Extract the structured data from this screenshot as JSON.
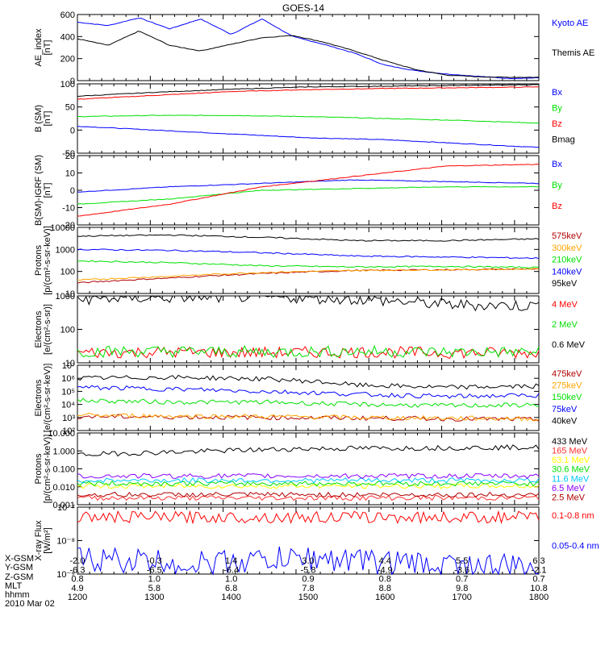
{
  "title": "GOES-14",
  "colors": {
    "blue": "#0000ff",
    "black": "#000000",
    "red": "#ff0000",
    "green": "#00e000",
    "orange": "#ffa500",
    "yellow": "#ffff00",
    "cyan": "#00c8ff",
    "purple": "#8800ff",
    "darkred": "#b00000",
    "midred": "#ff3030"
  },
  "footer": {
    "row_labels": [
      "X-GSM",
      "Y-GSM",
      "Z-GSM",
      "MLT",
      "hhmm",
      "2010 Mar 02"
    ],
    "columns": [
      [
        "-2.0",
        "-6.3",
        "0.8",
        "4.9",
        "1200"
      ],
      [
        "-0.3",
        "-6.5",
        "1.0",
        "5.8",
        "1300"
      ],
      [
        "1.4",
        "-6.4",
        "1.0",
        "6.8",
        "1400"
      ],
      [
        "3.0",
        "-5.8",
        "0.9",
        "7.8",
        "1500"
      ],
      [
        "4.4",
        "-4.9",
        "0.8",
        "8.8",
        "1600"
      ],
      [
        "5.5",
        "-3.6",
        "0.7",
        "9.8",
        "1700"
      ],
      [
        "6.3",
        "-2.1",
        "0.7",
        "10.8",
        "1800"
      ]
    ]
  },
  "chart_data": [
    {
      "type": "line",
      "scale": "linear",
      "ylabel": [
        "AE_index",
        "[nT]"
      ],
      "yticks": [
        "600",
        "400",
        "200",
        "0"
      ],
      "ylim": [
        0,
        600
      ],
      "x": {
        "label": "hhmm",
        "ticks": [
          "1200",
          "1300",
          "1400",
          "1500",
          "1600",
          "1700",
          "1800"
        ],
        "range": [
          "12:00",
          "18:20"
        ]
      },
      "series": [
        {
          "name": "Kyoto AE",
          "color": "blue",
          "values": [
            530,
            500,
            570,
            470,
            560,
            420,
            560,
            400,
            330,
            250,
            140,
            90,
            60,
            40,
            20,
            25
          ]
        },
        {
          "name": "Themis AE",
          "color": "black",
          "values": [
            380,
            320,
            450,
            320,
            270,
            330,
            390,
            410,
            350,
            270,
            180,
            100,
            50,
            35,
            30,
            30
          ]
        }
      ]
    },
    {
      "type": "line",
      "scale": "linear",
      "ylabel": [
        "B (SM)",
        "[nT]"
      ],
      "yticks": [
        "100",
        "50",
        "0",
        "-50"
      ],
      "ylim": [
        -60,
        120
      ],
      "series": [
        {
          "name": "Bx",
          "color": "blue",
          "values": [
            10,
            0,
            -10,
            -20,
            -25,
            -35,
            -45
          ]
        },
        {
          "name": "By",
          "color": "green",
          "values": [
            35,
            38,
            38,
            35,
            30,
            25,
            18
          ]
        },
        {
          "name": "Bz",
          "color": "red",
          "values": [
            80,
            90,
            100,
            105,
            108,
            110,
            112
          ]
        },
        {
          "name": "Bmag",
          "color": "black",
          "values": [
            88,
            98,
            106,
            112,
            114,
            116,
            118
          ]
        }
      ]
    },
    {
      "type": "line",
      "scale": "linear",
      "ylabel": [
        "B(SM)-IGRF (SM)",
        "[nT]"
      ],
      "yticks": [
        "20",
        "10",
        "0",
        "-10",
        "-20"
      ],
      "ylim": [
        -20,
        20
      ],
      "series": [
        {
          "name": "Bx",
          "color": "blue",
          "values": [
            -1,
            2,
            4,
            6,
            5,
            4
          ]
        },
        {
          "name": "By",
          "color": "green",
          "values": [
            -8,
            -5,
            0,
            1,
            2,
            2
          ]
        },
        {
          "name": "Bz",
          "color": "red",
          "values": [
            -15,
            -8,
            2,
            8,
            14,
            15
          ]
        }
      ]
    },
    {
      "type": "line",
      "scale": "log",
      "ylabel": [
        "Protons",
        "[p/(cm²-s-sr-keV)]"
      ],
      "yticks": [
        "10000",
        "1000",
        "100",
        "10"
      ],
      "ylim": [
        10,
        10000
      ],
      "series": [
        {
          "name": "575keV",
          "color": "darkred",
          "values": [
            30,
            50,
            80,
            110,
            120,
            130
          ]
        },
        {
          "name": "300keV",
          "color": "orange",
          "values": [
            40,
            60,
            90,
            110,
            120,
            130
          ]
        },
        {
          "name": "210keV",
          "color": "green",
          "values": [
            300,
            250,
            180,
            160,
            170,
            150
          ]
        },
        {
          "name": "140keV",
          "color": "blue",
          "values": [
            1000,
            900,
            700,
            500,
            450,
            400
          ]
        },
        {
          "name": "95keV",
          "color": "black",
          "values": [
            4000,
            4500,
            3500,
            2500,
            2500,
            3000
          ]
        }
      ]
    },
    {
      "type": "line",
      "scale": "log",
      "ylabel": [
        "Electrons",
        "[e/(cm²-s-sr)]"
      ],
      "yticks": [
        "1000",
        "100",
        "10"
      ],
      "ylim": [
        10,
        1000
      ],
      "series": [
        {
          "name": "4 MeV",
          "color": "red",
          "values": [
            20,
            21,
            20,
            21,
            20,
            20
          ]
        },
        {
          "name": "2 MeV",
          "color": "green",
          "values": [
            22,
            22,
            21,
            22,
            21,
            21
          ]
        },
        {
          "name": "0.6 MeV",
          "color": "black",
          "values": [
            800,
            900,
            950,
            800,
            550,
            500
          ]
        }
      ]
    },
    {
      "type": "line",
      "scale": "log",
      "ylabel": [
        "Electrons",
        "[e/(cm²-s-sr-keV)]"
      ],
      "yticks": [
        "10⁷",
        "10⁶",
        "10⁵",
        "10⁴",
        "10³",
        "10²"
      ],
      "ylim": [
        100,
        10000000
      ],
      "series": [
        {
          "name": "475keV",
          "color": "darkred",
          "values": [
            1200,
            1100,
            1000,
            900,
            800,
            700
          ]
        },
        {
          "name": "275keV",
          "color": "orange",
          "values": [
            1500,
            1300,
            1200,
            1000,
            900,
            800
          ]
        },
        {
          "name": "150keV",
          "color": "green",
          "values": [
            20000,
            15000,
            15000,
            10000,
            8000,
            9000
          ]
        },
        {
          "name": "75keV",
          "color": "blue",
          "values": [
            200000,
            150000,
            100000,
            60000,
            40000,
            50000
          ]
        },
        {
          "name": "40keV",
          "color": "black",
          "values": [
            1000000,
            1200000,
            900000,
            300000,
            200000,
            250000
          ]
        }
      ]
    },
    {
      "type": "line",
      "scale": "log",
      "ylabel": [
        "Protons",
        "[p/(cm²-s-sr-keV)]"
      ],
      "yticks": [
        "10.000",
        "1.000",
        "0.100",
        "0.010",
        "0.001"
      ],
      "ylim": [
        0.001,
        100
      ],
      "series": [
        {
          "name": "433 MeV",
          "color": "black",
          "values": [
            3,
            5,
            8,
            9,
            10
          ]
        },
        {
          "name": "165 MeV",
          "color": "midred",
          "values": [
            0.003,
            0.003,
            0.003,
            0.003,
            0.003
          ]
        },
        {
          "name": "63.1 MeV",
          "color": "yellow",
          "values": [
            0.02,
            0.02,
            0.02,
            0.02,
            0.02
          ]
        },
        {
          "name": "30.6 MeV",
          "color": "green",
          "values": [
            0.03,
            0.03,
            0.03,
            0.03,
            0.03
          ]
        },
        {
          "name": "11.6 MeV",
          "color": "cyan",
          "values": [
            0.05,
            0.05,
            0.05,
            0.05,
            0.05
          ]
        },
        {
          "name": "6.5 MeV",
          "color": "purple",
          "values": [
            0.1,
            0.1,
            0.1,
            0.1,
            0.1
          ]
        },
        {
          "name": "2.5 MeV",
          "color": "darkred",
          "values": [
            0.005,
            0.005,
            0.005,
            0.005,
            0.005
          ]
        }
      ]
    },
    {
      "type": "line",
      "scale": "log",
      "ylabel": [
        "X-ray Flux",
        "[W/m²]"
      ],
      "yticks": [
        "10⁻⁷",
        "10⁻⁸",
        "10⁻⁹"
      ],
      "ylim": [
        1e-09,
        1e-07
      ],
      "series": [
        {
          "name": "0.1-0.8 nm",
          "color": "red",
          "values": [
            5e-08,
            5e-08,
            5e-08,
            5e-08,
            5e-08
          ]
        },
        {
          "name": "0.05-0.4 nm",
          "color": "blue",
          "values": [
            3e-09,
            2e-09,
            3e-09,
            2e-09,
            1.5e-09
          ]
        }
      ]
    }
  ]
}
